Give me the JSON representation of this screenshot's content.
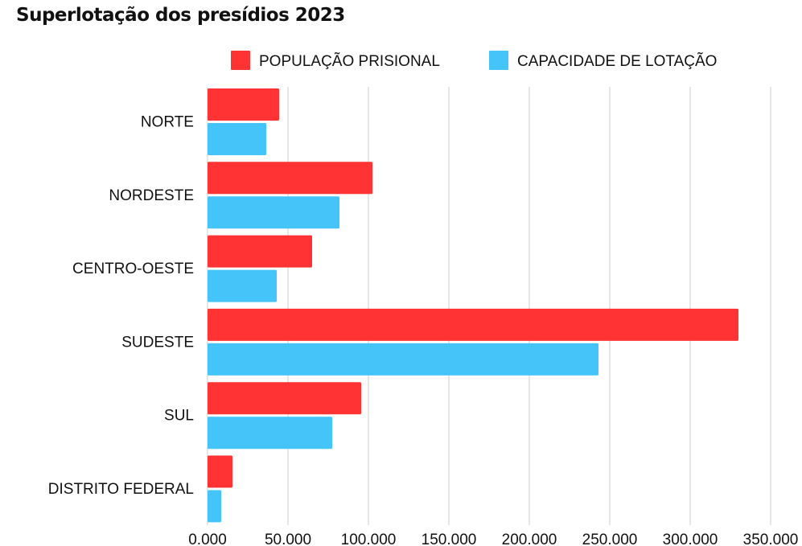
{
  "chart_data": {
    "type": "bar",
    "orientation": "horizontal",
    "title": "Superlotação dos presídios 2023",
    "categories": [
      "NORTE",
      "NORDESTE",
      "CENTRO-OESTE",
      "SUDESTE",
      "SUL",
      "DISTRITO FEDERAL"
    ],
    "series": [
      {
        "name": "POPULAÇÃO PRISIONAL",
        "color": "#ff3333",
        "values": [
          44500,
          102500,
          65000,
          330000,
          95500,
          15500
        ]
      },
      {
        "name": "CAPACIDADE DE LOTAÇÃO",
        "color": "#45c4fa",
        "values": [
          36500,
          82000,
          43000,
          243000,
          77500,
          8500
        ]
      }
    ],
    "xlim": [
      0,
      350000
    ],
    "x_ticks": [
      0,
      50000,
      100000,
      150000,
      200000,
      250000,
      300000,
      350000
    ],
    "x_tick_labels": [
      "0.000",
      "50.000",
      "100.000",
      "150.000",
      "200.000",
      "250.000",
      "300.000",
      "350.000"
    ],
    "grid": "vertical",
    "legend_position": "top-right",
    "xlabel": "",
    "ylabel": ""
  }
}
